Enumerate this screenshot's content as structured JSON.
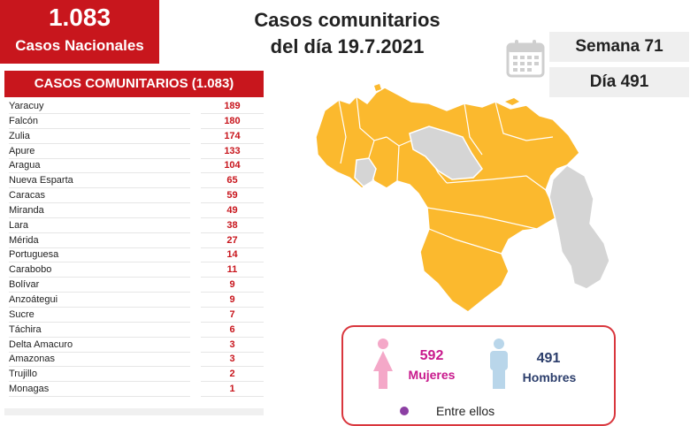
{
  "totals": {
    "number": "1.083",
    "label": "Casos Nacionales"
  },
  "title": {
    "line1": "Casos comunitarios",
    "line2": "del día 19.7.2021"
  },
  "week": "Semana 71",
  "day": "Día 491",
  "list": {
    "header": "CASOS COMUNITARIOS (1.083)",
    "rows": [
      {
        "name": "Yaracuy",
        "value": "189"
      },
      {
        "name": "Falcón",
        "value": "180"
      },
      {
        "name": "Zulia",
        "value": "174"
      },
      {
        "name": "Apure",
        "value": "133"
      },
      {
        "name": "Aragua",
        "value": "104"
      },
      {
        "name": "Nueva Esparta",
        "value": "65"
      },
      {
        "name": "Caracas",
        "value": "59"
      },
      {
        "name": "Miranda",
        "value": "49"
      },
      {
        "name": "Lara",
        "value": "38"
      },
      {
        "name": "Mérida",
        "value": "27"
      },
      {
        "name": "Portuguesa",
        "value": "14"
      },
      {
        "name": "Carabobo",
        "value": "11"
      },
      {
        "name": "Bolívar",
        "value": "9"
      },
      {
        "name": "Anzoátegui",
        "value": "9"
      },
      {
        "name": "Sucre",
        "value": "7"
      },
      {
        "name": "Táchira",
        "value": "6"
      },
      {
        "name": "Delta Amacuro",
        "value": "3"
      },
      {
        "name": "Amazonas",
        "value": "3"
      },
      {
        "name": "Trujillo",
        "value": "2"
      },
      {
        "name": "Monagas",
        "value": "1"
      }
    ]
  },
  "gender": {
    "women_count": "592",
    "women_label": "Mujeres",
    "men_count": "491",
    "men_label": "Hombres",
    "among": "Entre ellos"
  },
  "colors": {
    "brand_red": "#c8161d",
    "map_active": "#fbb92e",
    "map_inactive": "#d5d5d5",
    "women": "#c8198c",
    "men": "#2b3d6b"
  },
  "icons": [
    "calendar-icon",
    "female-icon",
    "male-icon"
  ]
}
